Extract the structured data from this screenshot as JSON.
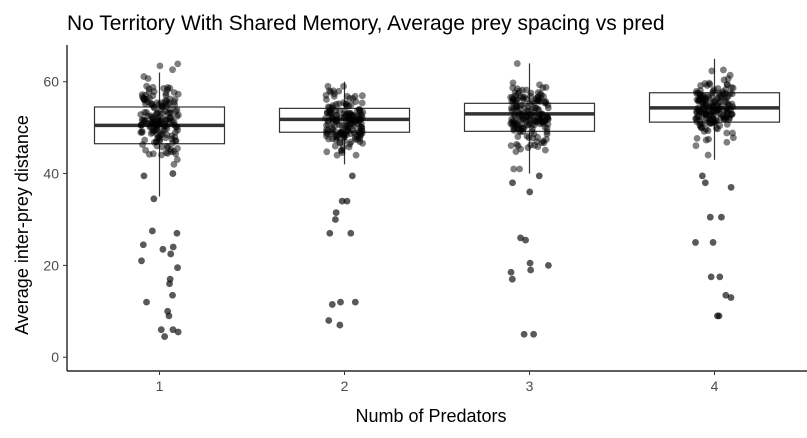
{
  "chart_data": {
    "type": "box",
    "title": "No Territory With Shared Memory, Average prey spacing vs pred",
    "xlabel": "Numb of Predators",
    "ylabel": "Average inter-prey distance",
    "categories": [
      "1",
      "2",
      "3",
      "4"
    ],
    "ylim": [
      -3,
      68
    ],
    "yticks": [
      0,
      20,
      40,
      60
    ],
    "grid": false,
    "boxes": [
      {
        "category": "1",
        "q1": 46.5,
        "median": 50.5,
        "q3": 54.5,
        "whisker_low": 35,
        "whisker_high": 62
      },
      {
        "category": "2",
        "q1": 49.0,
        "median": 51.8,
        "q3": 54.2,
        "whisker_low": 42,
        "whisker_high": 60
      },
      {
        "category": "3",
        "q1": 49.2,
        "median": 53.0,
        "q3": 55.3,
        "whisker_low": 40,
        "whisker_high": 64
      },
      {
        "category": "4",
        "q1": 51.2,
        "median": 54.3,
        "q3": 57.6,
        "whisker_low": 43,
        "whisker_high": 65
      }
    ],
    "outliers": [
      {
        "category": "1",
        "values": [
          39.5,
          40,
          34.5,
          27.5,
          27,
          24.5,
          24,
          23.5,
          22.5,
          21,
          19.5,
          17,
          16,
          13.5,
          12,
          10,
          9,
          6,
          6,
          5.5,
          4.5
        ]
      },
      {
        "category": "2",
        "values": [
          39.5,
          34,
          34,
          31.5,
          30,
          27,
          27,
          12,
          12,
          11.5,
          8,
          7
        ]
      },
      {
        "category": "3",
        "values": [
          39.5,
          38,
          36,
          26,
          25.5,
          20.5,
          20,
          19,
          18.5,
          17,
          5,
          5
        ]
      },
      {
        "category": "4",
        "values": [
          39.5,
          38,
          37,
          30.5,
          30.5,
          25,
          25,
          17.5,
          17.5,
          13.5,
          13,
          9,
          9
        ]
      }
    ],
    "point_clusters": [
      {
        "category": "1",
        "center": 52,
        "spread": 4.5,
        "count": 170,
        "min": 42,
        "max": 64
      },
      {
        "category": "2",
        "center": 51.5,
        "spread": 3.2,
        "count": 170,
        "min": 44,
        "max": 59
      },
      {
        "category": "3",
        "center": 52.5,
        "spread": 3.5,
        "count": 170,
        "min": 41,
        "max": 64
      },
      {
        "category": "4",
        "center": 54,
        "spread": 3.5,
        "count": 170,
        "min": 43,
        "max": 65.5
      }
    ],
    "point_color": "#000000",
    "point_opacity": 0.5
  }
}
